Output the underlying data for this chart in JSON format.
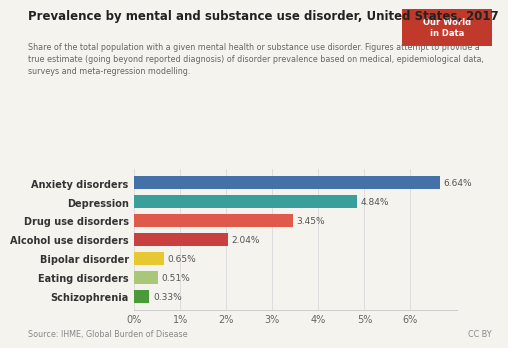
{
  "title": "Prevalence by mental and substance use disorder, United States, 2017",
  "subtitle": "Share of the total population with a given mental health or substance use disorder. Figures attempt to provide a\ntrue estimate (going beyond reported diagnosis) of disorder prevalence based on medical, epidemiological data,\nsurveys and meta-regression modelling.",
  "categories": [
    "Anxiety disorders",
    "Depression",
    "Drug use disorders",
    "Alcohol use disorders",
    "Bipolar disorder",
    "Eating disorders",
    "Schizophrenia"
  ],
  "values": [
    6.64,
    4.84,
    3.45,
    2.04,
    0.65,
    0.51,
    0.33
  ],
  "labels": [
    "6.64%",
    "4.84%",
    "3.45%",
    "2.04%",
    "0.65%",
    "0.51%",
    "0.33%"
  ],
  "colors": [
    "#4472a8",
    "#3a9e9a",
    "#e05a4b",
    "#c94040",
    "#e8c832",
    "#a8c878",
    "#4a9a3a"
  ],
  "xlim": [
    0,
    7.0
  ],
  "xticks": [
    0,
    1,
    2,
    3,
    4,
    5,
    6
  ],
  "xticklabels": [
    "0%",
    "1%",
    "2%",
    "3%",
    "4%",
    "5%",
    "6%"
  ],
  "source_text": "Source: IHME, Global Burden of Disease",
  "cc_text": "CC BY",
  "owid_box_color": "#c0392b",
  "background_color": "#f5f3ee"
}
